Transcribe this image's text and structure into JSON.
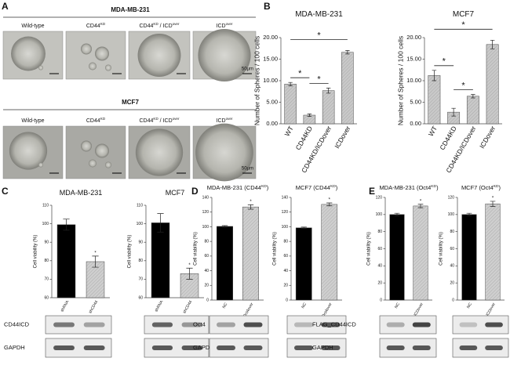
{
  "panel_letters": [
    "A",
    "B",
    "C",
    "D",
    "E"
  ],
  "panel_a": {
    "groups": [
      {
        "title": "MDA-MB-231",
        "labels": [
          [
            "Wild-type"
          ],
          [
            "CD44",
            "KD"
          ],
          [
            "CD44",
            "KD",
            " / ICD",
            "over"
          ],
          [
            "ICD",
            "over"
          ]
        ]
      },
      {
        "title": "MCF7",
        "labels": [
          [
            "Wild-type"
          ],
          [
            "CD44",
            "KD"
          ],
          [
            "CD44",
            "KD",
            " / ICD",
            "over"
          ],
          [
            "ICD",
            "over"
          ]
        ]
      }
    ],
    "scale_label": "50μm"
  },
  "chart_data": [
    {
      "type": "bar",
      "title": [
        "MDA-MB-231"
      ],
      "ylabel": "Number of Spheres / 100 cells",
      "categories": [
        "WT",
        "CD44KD",
        "CD44KD/ICDover",
        "ICDover"
      ],
      "values": [
        9.2,
        2.0,
        7.7,
        16.6
      ],
      "errors": [
        0.4,
        0.3,
        0.6,
        0.4
      ],
      "colors": [
        "#c9c9c9",
        "#c9c9c9",
        "#c9c9c9",
        "#c9c9c9"
      ],
      "ylim": [
        0,
        20
      ],
      "yticks": [
        {
          "value": 0,
          "label": "0.00"
        },
        {
          "value": 5,
          "label": "5.00"
        },
        {
          "value": 10,
          "label": "10.00"
        },
        {
          "value": 15,
          "label": "15.00"
        },
        {
          "value": 20,
          "label": "20.00"
        }
      ],
      "annotations": [
        {
          "text": "*",
          "bars": [
            0,
            1
          ]
        },
        {
          "text": "*",
          "bars": [
            1,
            2
          ]
        },
        {
          "text": "*",
          "bars": [
            0,
            3
          ]
        }
      ]
    },
    {
      "type": "bar",
      "title": [
        "MCF7"
      ],
      "ylabel": "Number of Spheres / 100 cells",
      "categories": [
        "WT",
        "CD44KD",
        "CD44KD/ICDover",
        "ICDover"
      ],
      "values": [
        11.2,
        2.7,
        6.4,
        18.4
      ],
      "errors": [
        1.2,
        0.9,
        0.4,
        1.0
      ],
      "colors": [
        "#c9c9c9",
        "#c9c9c9",
        "#c9c9c9",
        "#c9c9c9"
      ],
      "ylim": [
        0,
        20
      ],
      "yticks": [
        {
          "value": 0,
          "label": "0.00"
        },
        {
          "value": 5,
          "label": "5.00"
        },
        {
          "value": 10,
          "label": "10.00"
        },
        {
          "value": 15,
          "label": "15.00"
        },
        {
          "value": 20,
          "label": "20.00"
        }
      ],
      "annotations": [
        {
          "text": "*",
          "bars": [
            0,
            1
          ]
        },
        {
          "text": "*",
          "bars": [
            1,
            2
          ]
        },
        {
          "text": "*",
          "bars": [
            0,
            3
          ]
        }
      ]
    },
    {
      "type": "bar",
      "title": [
        "MDA-MB-231"
      ],
      "ylabel": "Cell viability (%)",
      "categories": [
        "shRNA",
        "shCD44"
      ],
      "values": [
        99.5,
        79.5
      ],
      "errors": [
        3,
        3
      ],
      "colors": [
        "#000000",
        "#cfcfcf"
      ],
      "ylim": [
        60,
        110
      ],
      "yticks": [
        60,
        70,
        80,
        90,
        100,
        110
      ],
      "annotations": [
        {
          "text": "*",
          "bars": [
            1
          ]
        }
      ]
    },
    {
      "type": "bar",
      "title": [
        "MCF7"
      ],
      "ylabel": "Cell viability (%)",
      "categories": [
        "shRNA",
        "shCD44"
      ],
      "values": [
        100.5,
        73
      ],
      "errors": [
        5,
        3
      ],
      "colors": [
        "#000000",
        "#cfcfcf"
      ],
      "ylim": [
        60,
        110
      ],
      "yticks": [
        60,
        70,
        80,
        90,
        100,
        110
      ],
      "annotations": [
        {
          "text": "*",
          "bars": [
            1
          ]
        }
      ]
    },
    {
      "type": "bar",
      "title": [
        "MDA-MB-231 (CD44",
        "KD",
        ")"
      ],
      "ylabel": "Cell viability (%)",
      "categories": [
        "NC",
        "Oct4over"
      ],
      "values": [
        100.5,
        127
      ],
      "errors": [
        1,
        3
      ],
      "colors": [
        "#000000",
        "#cfcfcf"
      ],
      "ylim": [
        0,
        140
      ],
      "yticks": [
        0,
        20,
        40,
        60,
        80,
        100,
        120,
        140
      ],
      "annotations": [
        {
          "text": "*",
          "bars": [
            1
          ]
        }
      ]
    },
    {
      "type": "bar",
      "title": [
        "MCF7 (CD44",
        "KD",
        ")"
      ],
      "ylabel": "Cell viability (%)",
      "categories": [
        "NC",
        "Oct4over"
      ],
      "values": [
        98.5,
        130.5
      ],
      "errors": [
        1,
        2
      ],
      "colors": [
        "#000000",
        "#cfcfcf"
      ],
      "ylim": [
        0,
        140
      ],
      "yticks": [
        0,
        20,
        40,
        60,
        80,
        100,
        120,
        140
      ],
      "annotations": [
        {
          "text": "*",
          "bars": [
            1
          ]
        }
      ]
    },
    {
      "type": "bar",
      "title": [
        "MDA-MB-231 (Oct4",
        "KD",
        ")"
      ],
      "ylabel": "Cell viability (%)",
      "categories": [
        "NC",
        "ICDover"
      ],
      "values": [
        100,
        110
      ],
      "errors": [
        1.5,
        2
      ],
      "colors": [
        "#000000",
        "#cfcfcf"
      ],
      "ylim": [
        0,
        120
      ],
      "yticks": [
        0,
        20,
        40,
        60,
        80,
        100,
        120
      ],
      "annotations": [
        {
          "text": "*",
          "bars": [
            1
          ]
        }
      ]
    },
    {
      "type": "bar",
      "title": [
        "MCF7 (Oct4",
        "KD",
        ")"
      ],
      "ylabel": "Cell viability (%)",
      "categories": [
        "NC",
        "ICDover"
      ],
      "values": [
        100,
        112.5
      ],
      "errors": [
        1.5,
        3
      ],
      "colors": [
        "#000000",
        "#cfcfcf"
      ],
      "ylim": [
        0,
        120
      ],
      "yticks": [
        0,
        20,
        40,
        60,
        80,
        100,
        120
      ],
      "annotations": [
        {
          "text": "*",
          "bars": [
            1
          ]
        }
      ]
    }
  ],
  "blots": [
    {
      "labels": [
        "CD44ICD",
        "GAPDH"
      ]
    },
    {
      "labels": [
        "Oct4",
        "GAPDH"
      ]
    },
    {
      "labels": [
        "FLAG_CD44ICD",
        "GAPDH"
      ]
    }
  ]
}
